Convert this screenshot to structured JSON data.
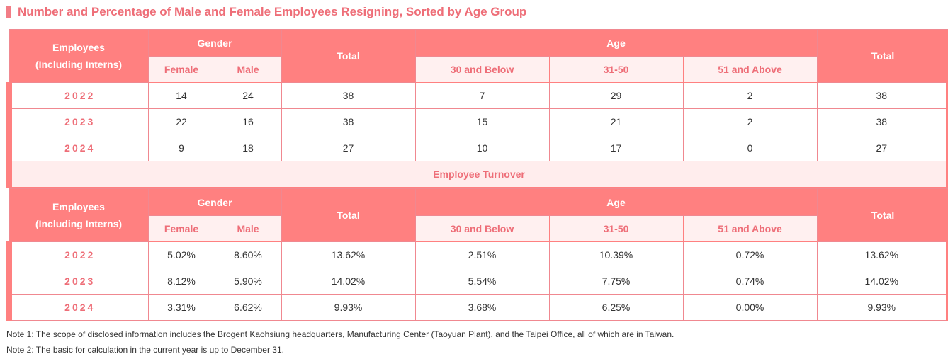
{
  "title": "Number and Percentage of Male and Female Employees Resigning, Sorted by Age Group",
  "header": {
    "employees": "Employees",
    "employees_sub": "(Including Interns)",
    "gender": "Gender",
    "female": "Female",
    "male": "Male",
    "total": "Total",
    "age": "Age",
    "age_30_below": "30 and Below",
    "age_31_50": "31-50",
    "age_51_above": "51 and Above",
    "age_total": "Total"
  },
  "counts": [
    {
      "year": "2022",
      "female": "14",
      "male": "24",
      "total": "38",
      "a30": "7",
      "a31_50": "29",
      "a51": "2",
      "age_total": "38"
    },
    {
      "year": "2023",
      "female": "22",
      "male": "16",
      "total": "38",
      "a30": "15",
      "a31_50": "21",
      "a51": "2",
      "age_total": "38"
    },
    {
      "year": "2024",
      "female": "9",
      "male": "18",
      "total": "27",
      "a30": "10",
      "a31_50": "17",
      "a51": "0",
      "age_total": "27"
    }
  ],
  "turnover_label": "Employee Turnover",
  "rates": [
    {
      "year": "2022",
      "female": "5.02%",
      "male": "8.60%",
      "total": "13.62%",
      "a30": "2.51%",
      "a31_50": "10.39%",
      "a51": "0.72%",
      "age_total": "13.62%"
    },
    {
      "year": "2023",
      "female": "8.12%",
      "male": "5.90%",
      "total": "14.02%",
      "a30": "5.54%",
      "a31_50": "7.75%",
      "a51": "0.74%",
      "age_total": "14.02%"
    },
    {
      "year": "2024",
      "female": "3.31%",
      "male": "6.62%",
      "total": "9.93%",
      "a30": "3.68%",
      "a31_50": "6.25%",
      "a51": "0.00%",
      "age_total": "9.93%"
    }
  ],
  "notes": [
    "Note 1: The scope of disclosed information includes the Brogent Kaohsiung headquarters, Manufacturing Center (Taoyuan Plant), and the Taipei Office, all of which are in Taiwan.",
    "Note 2: The basic for calculation in the current year is up to December 31."
  ],
  "colors": {
    "accent": "#ff8080",
    "title": "#ee6e78",
    "subheader_bg": "#fff0f0"
  }
}
